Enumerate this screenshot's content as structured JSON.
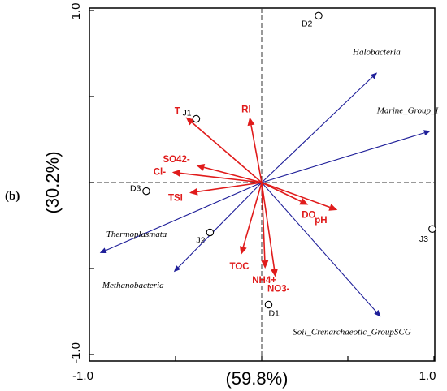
{
  "panel_label": "(b)",
  "chart_data": {
    "type": "scatter",
    "subtype": "rda-biplot",
    "xlabel": "(59.8%)",
    "ylabel": "(30.2%)",
    "xlim": [
      -1.0,
      1.0
    ],
    "ylim": [
      -1.0,
      1.0
    ],
    "x_ticks": [
      "-1.0",
      "1.0"
    ],
    "y_ticks": [
      "1.0",
      "-1.0"
    ],
    "reference_lines": "dashed at x=0 and y=0",
    "colors": {
      "environment": "#e01b1b",
      "species": "#1f1f99",
      "sites": "#000000"
    },
    "environment_vectors": [
      {
        "label": "T",
        "x": -0.44,
        "y": 0.38
      },
      {
        "label": "RI",
        "x": -0.07,
        "y": 0.38
      },
      {
        "label": "SO42-",
        "x": -0.38,
        "y": 0.1
      },
      {
        "label": "Cl-",
        "x": -0.52,
        "y": 0.06
      },
      {
        "label": "TSI",
        "x": -0.42,
        "y": -0.06
      },
      {
        "label": "DO",
        "x": 0.27,
        "y": -0.13
      },
      {
        "label": "pH",
        "x": 0.44,
        "y": -0.16
      },
      {
        "label": "TOC",
        "x": -0.12,
        "y": -0.42
      },
      {
        "label": "NH4+",
        "x": 0.02,
        "y": -0.5
      },
      {
        "label": "NO3-",
        "x": 0.08,
        "y": -0.55
      }
    ],
    "species_vectors": [
      {
        "label": "Halobacteria",
        "x": 0.67,
        "y": 0.64
      },
      {
        "label": "Marine_Group_I",
        "x": 0.98,
        "y": 0.3
      },
      {
        "label": "Thermoplasmata",
        "x": -0.94,
        "y": -0.41
      },
      {
        "label": "Methanobacteria",
        "x": -0.51,
        "y": -0.52
      },
      {
        "label": "Soil_Crenarchaeotic_GroupSCG",
        "x": 0.69,
        "y": -0.78
      }
    ],
    "sites": [
      {
        "label": "D2",
        "x": 0.33,
        "y": 0.97
      },
      {
        "label": "J1",
        "x": -0.38,
        "y": 0.37
      },
      {
        "label": "D3",
        "x": -0.67,
        "y": -0.05
      },
      {
        "label": "J2",
        "x": -0.3,
        "y": -0.29
      },
      {
        "label": "J3",
        "x": 0.99,
        "y": -0.27
      },
      {
        "label": "D1",
        "x": 0.04,
        "y": -0.71
      }
    ]
  }
}
